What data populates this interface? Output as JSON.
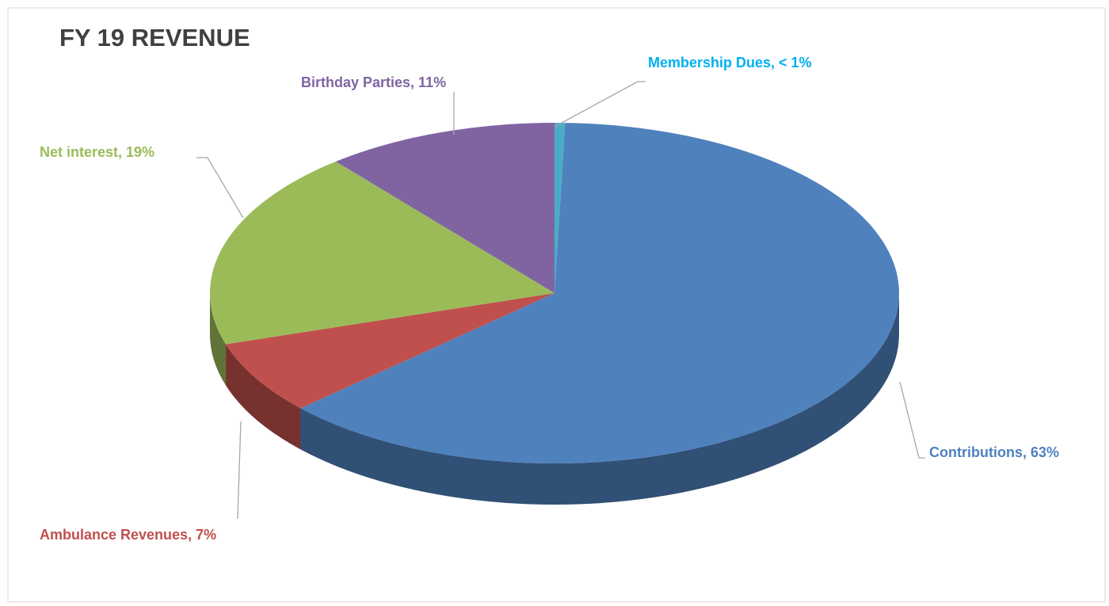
{
  "chart_data": {
    "type": "pie3d",
    "title": "FY 19 REVENUE",
    "values": [
      0.5,
      63,
      7,
      19,
      11
    ],
    "value_labels": [
      "Membership Dues, < 1%",
      "Contributions, 63%",
      "Ambulance Revenues, 7%",
      "Net interest, 19%",
      "Birthday Parties, 11%"
    ],
    "colors": [
      "#4bacc6",
      "#4f81bd",
      "#c0504d",
      "#9bbb59",
      "#8064a2"
    ],
    "label_colors": [
      "#00b0f0",
      "#4f81bd",
      "#c0504d",
      "#9bbb59",
      "#8064a2"
    ]
  }
}
